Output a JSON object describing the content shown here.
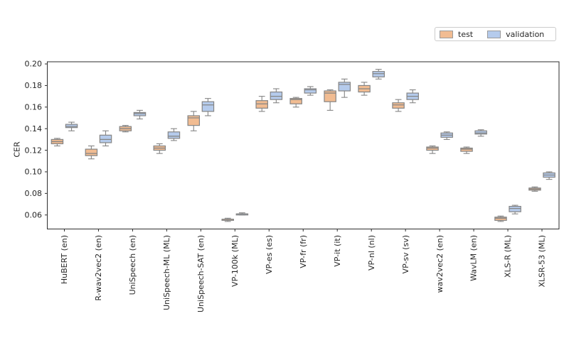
{
  "chart_data": {
    "type": "box",
    "ylabel": "CER",
    "ylim": [
      0.047,
      0.202
    ],
    "yticks": [
      0.06,
      0.08,
      0.1,
      0.12,
      0.14,
      0.16,
      0.18,
      0.2
    ],
    "grid": false,
    "legend_position": "top-right",
    "legend": [
      {
        "name": "test",
        "color": "#f1bc92"
      },
      {
        "name": "validation",
        "color": "#b5cbec"
      }
    ],
    "categories": [
      "HuBERT (en)",
      "R-wav2vec2 (en)",
      "UniSpeech (en)",
      "UniSpeech-ML (ML)",
      "UniSpeech-SAT (en)",
      "VP-100k (ML)",
      "VP-es (es)",
      "VP-fr (fr)",
      "VP-it (it)",
      "VP-nl (nl)",
      "VP-sv (sv)",
      "wav2vec2 (en)",
      "WavLM (en)",
      "XLS-R (ML)",
      "XLSR-53 (ML)"
    ],
    "box_stats_order": [
      "whisker_low",
      "q1",
      "median",
      "q3",
      "whisker_high"
    ],
    "series": [
      {
        "name": "test",
        "color": "#f1bc92",
        "boxes": [
          [
            0.124,
            0.126,
            0.128,
            0.13,
            0.131
          ],
          [
            0.112,
            0.115,
            0.117,
            0.121,
            0.124
          ],
          [
            0.137,
            0.138,
            0.14,
            0.142,
            0.143
          ],
          [
            0.117,
            0.12,
            0.122,
            0.124,
            0.126
          ],
          [
            0.138,
            0.143,
            0.15,
            0.152,
            0.156
          ],
          [
            0.054,
            0.055,
            0.056,
            0.056,
            0.057
          ],
          [
            0.156,
            0.159,
            0.163,
            0.166,
            0.17
          ],
          [
            0.16,
            0.163,
            0.167,
            0.168,
            0.169
          ],
          [
            0.157,
            0.165,
            0.173,
            0.175,
            0.176
          ],
          [
            0.171,
            0.174,
            0.177,
            0.18,
            0.183
          ],
          [
            0.156,
            0.159,
            0.162,
            0.164,
            0.167
          ],
          [
            0.117,
            0.12,
            0.122,
            0.123,
            0.124
          ],
          [
            0.117,
            0.119,
            0.121,
            0.122,
            0.123
          ],
          [
            0.054,
            0.055,
            0.057,
            0.058,
            0.059
          ],
          [
            0.082,
            0.083,
            0.084,
            0.085,
            0.086
          ]
        ]
      },
      {
        "name": "validation",
        "color": "#b5cbec",
        "boxes": [
          [
            0.138,
            0.141,
            0.142,
            0.144,
            0.146
          ],
          [
            0.124,
            0.127,
            0.13,
            0.134,
            0.138
          ],
          [
            0.149,
            0.152,
            0.154,
            0.155,
            0.157
          ],
          [
            0.129,
            0.131,
            0.133,
            0.137,
            0.14
          ],
          [
            0.152,
            0.156,
            0.162,
            0.165,
            0.168
          ],
          [
            0.06,
            0.06,
            0.061,
            0.061,
            0.062
          ],
          [
            0.164,
            0.167,
            0.17,
            0.174,
            0.177
          ],
          [
            0.171,
            0.173,
            0.176,
            0.177,
            0.179
          ],
          [
            0.169,
            0.175,
            0.181,
            0.183,
            0.186
          ],
          [
            0.186,
            0.188,
            0.191,
            0.193,
            0.195
          ],
          [
            0.164,
            0.167,
            0.17,
            0.173,
            0.176
          ],
          [
            0.13,
            0.132,
            0.134,
            0.136,
            0.137
          ],
          [
            0.133,
            0.135,
            0.136,
            0.138,
            0.139
          ],
          [
            0.061,
            0.063,
            0.066,
            0.068,
            0.069
          ],
          [
            0.093,
            0.095,
            0.097,
            0.099,
            0.1
          ]
        ]
      }
    ],
    "colors": {
      "spine": "#2e2e2e",
      "tick_text": "#262626",
      "box_edge": "#858585",
      "whisker": "#858585",
      "legend_border": "#cccccc"
    }
  }
}
